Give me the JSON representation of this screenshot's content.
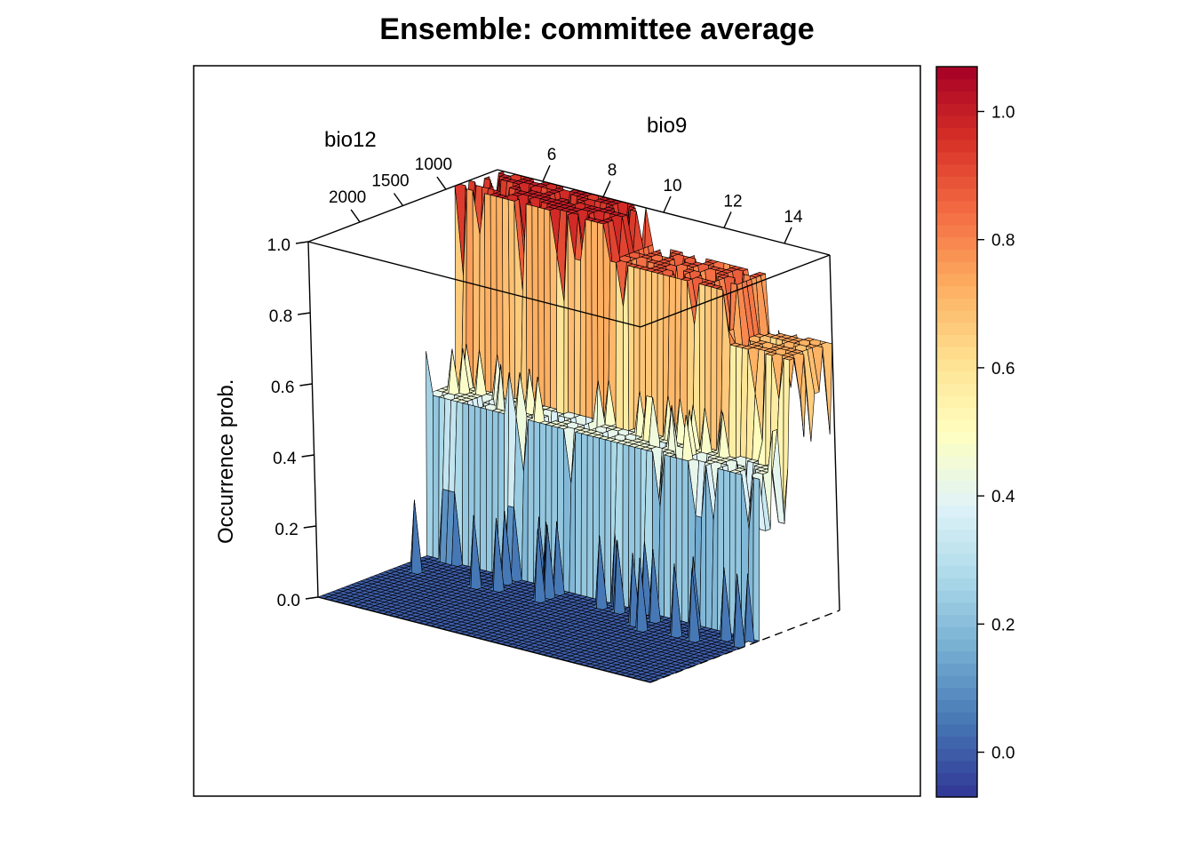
{
  "chart_data": {
    "type": "surface",
    "title": "Ensemble: committee average",
    "x_axis": {
      "label": "bio9",
      "ticks": [
        "6",
        "8",
        "10",
        "12",
        "14"
      ],
      "range": [
        4.5,
        15.5
      ]
    },
    "y_axis": {
      "label": "bio12",
      "ticks": [
        "1000",
        "1500",
        "2000"
      ],
      "range": [
        400,
        2600
      ]
    },
    "z_axis": {
      "label": "Occurrence prob.",
      "ticks": [
        "0.0",
        "0.2",
        "0.4",
        "0.6",
        "0.8",
        "1.0"
      ],
      "range": [
        0,
        1
      ]
    },
    "colorbar": {
      "ticks": [
        "0.0",
        "0.2",
        "0.4",
        "0.6",
        "0.8",
        "1.0"
      ],
      "range": [
        -0.07,
        1.07
      ],
      "palette": [
        "#313695",
        "#4575b4",
        "#74add1",
        "#abd9e9",
        "#e0f3f8",
        "#ffffbf",
        "#fee090",
        "#fdae61",
        "#f46d43",
        "#d73027",
        "#a50026"
      ]
    },
    "grid": false,
    "surface_summary": {
      "description_levels": [
        {
          "bio12_range": [
            400,
            900
          ],
          "bio9_range": [
            4.5,
            9.5
          ],
          "occurrence_prob": 1.0
        },
        {
          "bio12_range": [
            400,
            900
          ],
          "bio9_range": [
            9.5,
            13.5
          ],
          "occurrence_prob": 0.9
        },
        {
          "bio12_range": [
            400,
            900
          ],
          "bio9_range": [
            13.5,
            15.5
          ],
          "occurrence_prob": 0.75
        },
        {
          "bio12_range": [
            900,
            1300
          ],
          "bio9_range": [
            4.5,
            15.5
          ],
          "occurrence_prob": 0.45
        },
        {
          "bio12_range": [
            1300,
            2600
          ],
          "bio9_range": [
            4.5,
            15.5
          ],
          "occurrence_prob": 0.0
        }
      ]
    }
  }
}
